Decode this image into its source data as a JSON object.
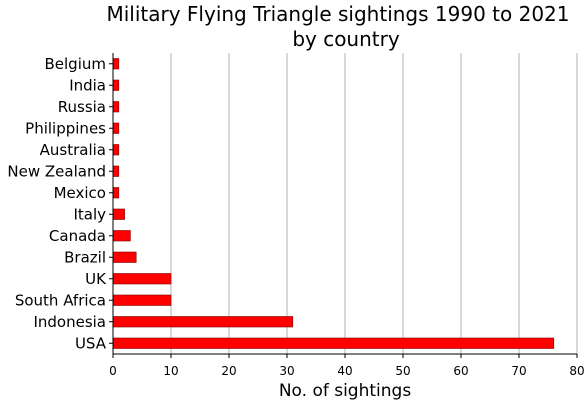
{
  "chart_data": {
    "type": "bar",
    "orientation": "horizontal",
    "title": "Military Flying Triangle sightings 1990 to 2021 by country",
    "title_lines": [
      "Military Flying Triangle sightings 1990 to 2021",
      "by country"
    ],
    "xlabel": "No. of sightings",
    "ylabel": "",
    "categories": [
      "Belgium",
      "India",
      "Russia",
      "Philippines",
      "Australia",
      "New Zealand",
      "Mexico",
      "Italy",
      "Canada",
      "Brazil",
      "UK",
      "South Africa",
      "Indonesia",
      "USA"
    ],
    "values": [
      1,
      1,
      1,
      1,
      1,
      1,
      1,
      2,
      3,
      4,
      10,
      10,
      31,
      76
    ],
    "xlim": [
      0,
      80
    ],
    "xticks": [
      "0",
      "10",
      "20",
      "30",
      "40",
      "50",
      "60",
      "70",
      "80"
    ],
    "grid": "vertical",
    "legend": "none",
    "bar_color": "#ff0000",
    "bar_edge_color": "#7f0000",
    "grid_color": "#b3b3b3"
  }
}
